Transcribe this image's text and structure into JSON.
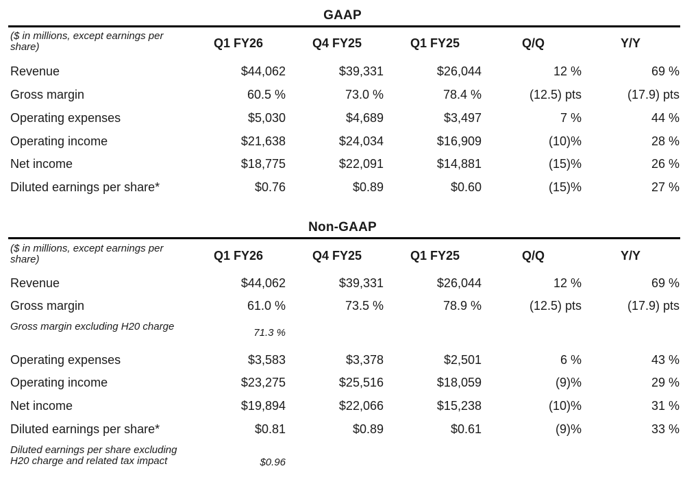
{
  "sections": [
    {
      "title": "GAAP",
      "header": {
        "label": "($ in millions, except earnings per share)",
        "cols": [
          "Q1 FY26",
          "Q4 FY25",
          "Q1 FY25",
          "Q/Q",
          "Y/Y"
        ]
      },
      "rows": [
        {
          "label": "Revenue",
          "values": [
            "$44,062",
            "$39,331",
            "$26,044",
            "12 %",
            "69 %"
          ]
        },
        {
          "label": "Gross margin",
          "values": [
            "60.5 %",
            "73.0 %",
            "78.4 %",
            "(12.5) pts",
            "(17.9) pts"
          ]
        },
        {
          "label": "Operating expenses",
          "values": [
            "$5,030",
            "$4,689",
            "$3,497",
            "7 %",
            "44 %"
          ]
        },
        {
          "label": "Operating income",
          "values": [
            "$21,638",
            "$24,034",
            "$16,909",
            "(10)%",
            "28 %"
          ]
        },
        {
          "label": "Net income",
          "values": [
            "$18,775",
            "$22,091",
            "$14,881",
            "(15)%",
            "26 %"
          ]
        },
        {
          "label": "Diluted earnings per share*",
          "values": [
            "$0.76",
            "$0.89",
            "$0.60",
            "(15)%",
            "27 %"
          ]
        }
      ]
    },
    {
      "title": "Non-GAAP",
      "header": {
        "label": "($ in millions, except earnings per share)",
        "cols": [
          "Q1 FY26",
          "Q4 FY25",
          "Q1 FY25",
          "Q/Q",
          "Y/Y"
        ]
      },
      "rows": [
        {
          "label": "Revenue",
          "values": [
            "$44,062",
            "$39,331",
            "$26,044",
            "12 %",
            "69 %"
          ]
        },
        {
          "label": "Gross margin",
          "values": [
            "61.0 %",
            "73.5 %",
            "78.9 %",
            "(12.5) pts",
            "(17.9) pts"
          ]
        },
        {
          "label": "Gross margin excluding H20 charge",
          "italic": true,
          "values": [
            "71.3 %"
          ]
        },
        {
          "label": "Operating expenses",
          "values": [
            "$3,583",
            "$3,378",
            "$2,501",
            "6 %",
            "43 %"
          ]
        },
        {
          "label": "Operating income",
          "values": [
            "$23,275",
            "$25,516",
            "$18,059",
            "(9)%",
            "29 %"
          ]
        },
        {
          "label": "Net income",
          "values": [
            "$19,894",
            "$22,066",
            "$15,238",
            "(10)%",
            "31 %"
          ]
        },
        {
          "label": "Diluted earnings per share*",
          "values": [
            "$0.81",
            "$0.89",
            "$0.61",
            "(9)%",
            "33 %"
          ]
        },
        {
          "label": "Diluted earnings per share excluding H20 charge and related tax impact",
          "italic": true,
          "values": [
            "$0.96"
          ]
        }
      ]
    }
  ]
}
